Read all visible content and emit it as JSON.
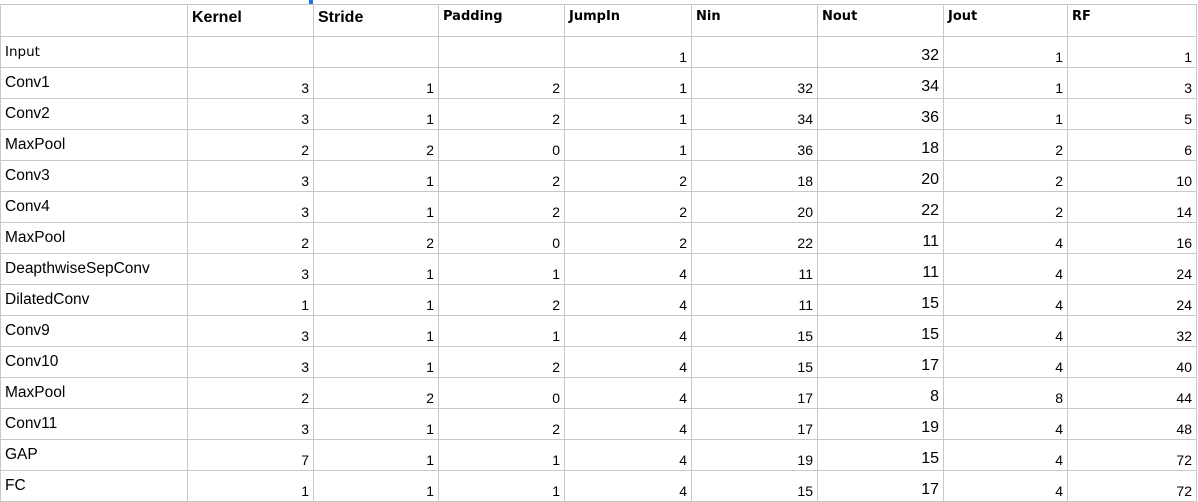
{
  "sheet": {
    "headers": [
      "",
      "Kernel",
      "Stride",
      "Padding",
      "JumpIn",
      "Nin",
      "Nout",
      "Jout",
      "RF"
    ],
    "rows": [
      [
        "Input",
        "",
        "",
        "",
        "1",
        "",
        "32",
        "1",
        "1"
      ],
      [
        "Conv1",
        "3",
        "1",
        "2",
        "1",
        "32",
        "34",
        "1",
        "3"
      ],
      [
        "Conv2",
        "3",
        "1",
        "2",
        "1",
        "34",
        "36",
        "1",
        "5"
      ],
      [
        "MaxPool",
        "2",
        "2",
        "0",
        "1",
        "36",
        "18",
        "2",
        "6"
      ],
      [
        "Conv3",
        "3",
        "1",
        "2",
        "2",
        "18",
        "20",
        "2",
        "10"
      ],
      [
        "Conv4",
        "3",
        "1",
        "2",
        "2",
        "20",
        "22",
        "2",
        "14"
      ],
      [
        "MaxPool",
        "2",
        "2",
        "0",
        "2",
        "22",
        "11",
        "4",
        "16"
      ],
      [
        "DeapthwiseSepConv",
        "3",
        "1",
        "1",
        "4",
        "11",
        "11",
        "4",
        "24"
      ],
      [
        "DilatedConv",
        "1",
        "1",
        "2",
        "4",
        "11",
        "15",
        "4",
        "24"
      ],
      [
        "Conv9",
        "3",
        "1",
        "1",
        "4",
        "15",
        "15",
        "4",
        "32"
      ],
      [
        "Conv10",
        "3",
        "1",
        "2",
        "4",
        "15",
        "17",
        "4",
        "40"
      ],
      [
        "MaxPool",
        "2",
        "2",
        "0",
        "4",
        "17",
        "8",
        "8",
        "44"
      ],
      [
        "Conv11",
        "3",
        "1",
        "2",
        "4",
        "17",
        "19",
        "4",
        "48"
      ],
      [
        "GAP",
        "7",
        "1",
        "1",
        "4",
        "19",
        "15",
        "4",
        "72"
      ],
      [
        "FC",
        "1",
        "1",
        "1",
        "4",
        "15",
        "17",
        "4",
        "72"
      ]
    ]
  },
  "colors": {
    "gridline": "#c8c8c8",
    "selection": "#1a73e8"
  }
}
